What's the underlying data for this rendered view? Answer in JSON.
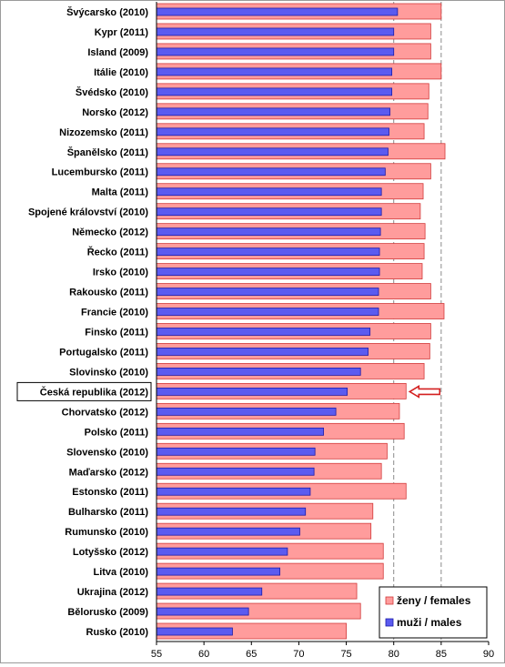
{
  "chart_data": {
    "type": "bar",
    "orientation": "horizontal",
    "categories": [
      "Švýcarsko (2010)",
      "Kypr (2011)",
      "Island  (2009)",
      "Itálie (2010)",
      "Švédsko (2010)",
      "Norsko (2012)",
      "Nizozemsko (2011)",
      "Španělsko (2011)",
      "Lucembursko (2011)",
      "Malta (2011)",
      "Spojené království (2010)",
      "Německo (2012)",
      "Řecko (2011)",
      "Irsko (2010)",
      "Rakousko (2011)",
      "Francie (2010)",
      "Finsko (2011)",
      "Portugalsko (2011)",
      "Slovinsko (2010)",
      "Česká republika (2012)",
      "Chorvatsko (2012)",
      "Polsko (2011)",
      "Slovensko (2010)",
      "Maďarsko (2012)",
      "Estonsko (2011)",
      "Bulharsko (2011)",
      "Rumunsko (2010)",
      "Lotyšsko (2012)",
      "Litva (2010)",
      "Ukrajina (2012)",
      "Bělorusko (2009)",
      "Rusko (2010)"
    ],
    "series": [
      {
        "name": "ženy / females",
        "color": "#ff9c9c",
        "values": [
          85.0,
          83.9,
          83.9,
          85.0,
          83.7,
          83.6,
          83.2,
          85.4,
          83.9,
          83.1,
          82.8,
          83.3,
          83.2,
          83.0,
          83.9,
          85.3,
          83.9,
          83.8,
          83.2,
          81.3,
          80.6,
          81.1,
          79.3,
          78.7,
          81.3,
          77.8,
          77.6,
          78.9,
          78.9,
          76.1,
          76.5,
          75.0
        ]
      },
      {
        "name": "muži / males",
        "color": "#5b5bf0",
        "values": [
          80.4,
          80.0,
          80.0,
          79.8,
          79.8,
          79.6,
          79.5,
          79.4,
          79.1,
          78.7,
          78.7,
          78.6,
          78.5,
          78.5,
          78.4,
          78.4,
          77.5,
          77.3,
          76.5,
          75.1,
          73.9,
          72.6,
          71.7,
          71.6,
          71.2,
          70.7,
          70.1,
          68.8,
          68.0,
          66.1,
          64.7,
          63.0
        ]
      }
    ],
    "xlim": [
      55,
      90
    ],
    "xticks": [
      "55",
      "60",
      "65",
      "70",
      "75",
      "80",
      "85",
      "90"
    ],
    "reference_lines": [
      80,
      85
    ],
    "highlighted_category": "Česká republika (2012)",
    "legend_position": "bottom-right",
    "title": "",
    "xlabel": "",
    "ylabel": ""
  }
}
